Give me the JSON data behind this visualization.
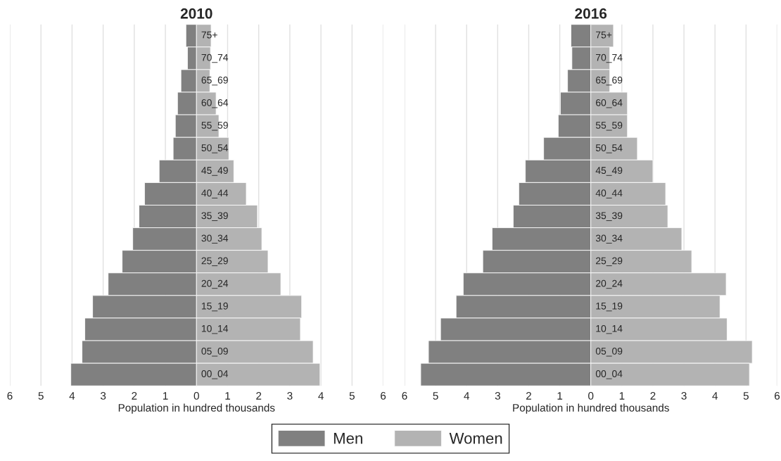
{
  "chart_data": [
    {
      "type": "bar",
      "orientation": "horizontal",
      "stacked": true,
      "title": "2010",
      "xlabel": "Population in hundred thousands",
      "categories": [
        "75+",
        "70_74",
        "65_69",
        "60_64",
        "55_59",
        "50_54",
        "45_49",
        "40_44",
        "35_39",
        "30_34",
        "25_29",
        "20_24",
        "15_19",
        "10_14",
        "05_09",
        "00_04"
      ],
      "series": [
        {
          "name": "Men",
          "color": "#808080",
          "values": [
            -0.34,
            -0.29,
            -0.5,
            -0.61,
            -0.68,
            -0.75,
            -1.2,
            -1.67,
            -1.85,
            -2.05,
            -2.39,
            -2.84,
            -3.34,
            -3.59,
            -3.68,
            -4.04
          ]
        },
        {
          "name": "Women",
          "color": "#b3b3b3",
          "values": [
            0.47,
            0.45,
            0.43,
            0.63,
            0.72,
            1.04,
            1.2,
            1.6,
            1.96,
            2.1,
            2.3,
            2.71,
            3.38,
            3.34,
            3.75,
            3.97
          ]
        }
      ],
      "xlim": [
        -6,
        6
      ],
      "xticks": [
        {
          "value": -6,
          "label": "6"
        },
        {
          "value": -5,
          "label": "5"
        },
        {
          "value": -4,
          "label": "4"
        },
        {
          "value": -3,
          "label": "3"
        },
        {
          "value": -2,
          "label": "2"
        },
        {
          "value": -1,
          "label": "1"
        },
        0,
        1,
        2,
        3,
        4,
        5,
        6
      ],
      "grid": "x",
      "legend": "bottom"
    },
    {
      "type": "bar",
      "orientation": "horizontal",
      "stacked": true,
      "title": "2016",
      "xlabel": "Population in hundred thousands",
      "categories": [
        "75+",
        "70_74",
        "65_69",
        "60_64",
        "55_59",
        "50_54",
        "45_49",
        "40_44",
        "35_39",
        "30_34",
        "25_29",
        "20_24",
        "15_19",
        "10_14",
        "05_09",
        "00_04"
      ],
      "series": [
        {
          "name": "Men",
          "color": "#808080",
          "values": [
            -0.64,
            -0.61,
            -0.75,
            -0.98,
            -1.05,
            -1.52,
            -2.11,
            -2.32,
            -2.5,
            -3.18,
            -3.48,
            -4.11,
            -4.34,
            -4.84,
            -5.23,
            -5.48
          ]
        },
        {
          "name": "Women",
          "color": "#b3b3b3",
          "values": [
            0.73,
            0.61,
            0.61,
            1.18,
            1.18,
            1.5,
            2.0,
            2.41,
            2.48,
            2.93,
            3.25,
            4.36,
            4.16,
            4.39,
            5.2,
            5.11
          ]
        }
      ],
      "xlim": [
        -6,
        6
      ],
      "xticks": [
        {
          "value": -6,
          "label": "6"
        },
        {
          "value": -5,
          "label": "5"
        },
        {
          "value": -4,
          "label": "4"
        },
        {
          "value": -3,
          "label": "3"
        },
        {
          "value": -2,
          "label": "2"
        },
        {
          "value": -1,
          "label": "1"
        },
        0,
        1,
        2,
        3,
        4,
        5,
        6
      ],
      "grid": "x"
    }
  ]
}
